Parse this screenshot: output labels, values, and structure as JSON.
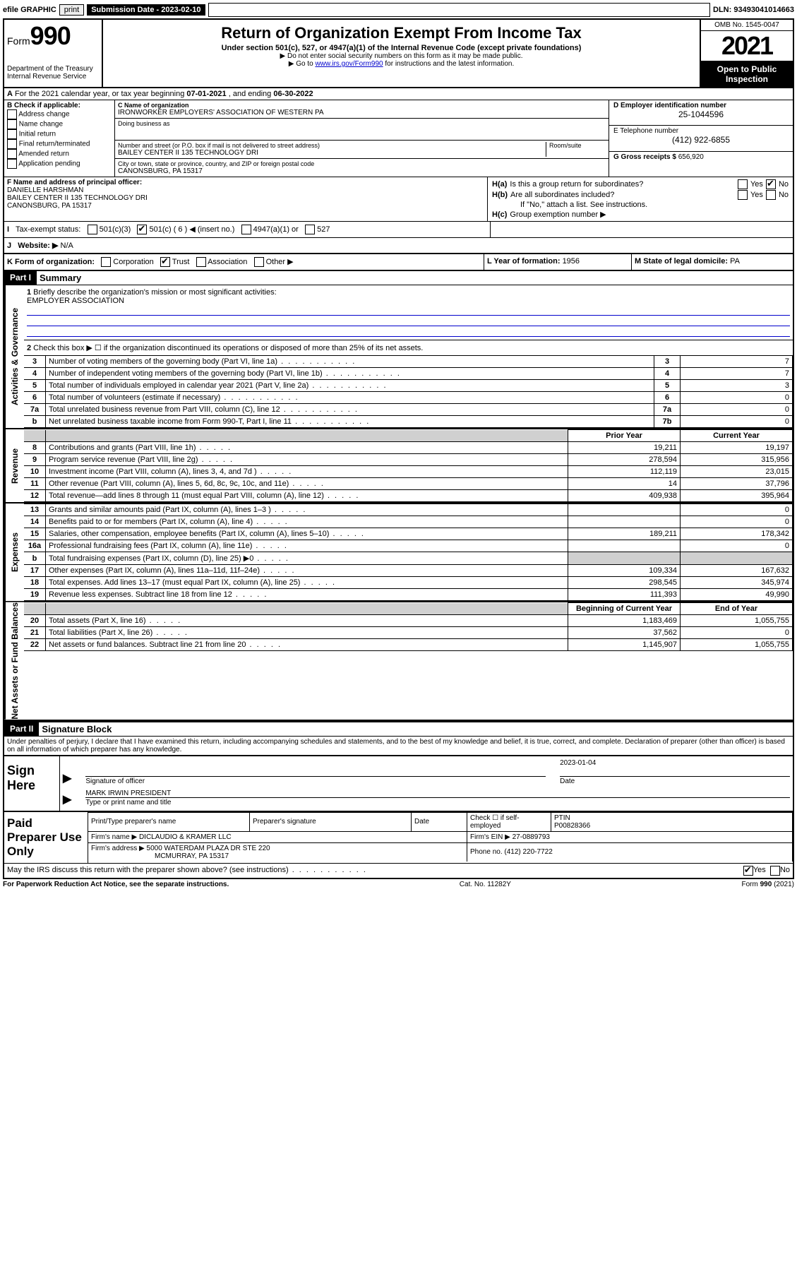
{
  "topbar": {
    "efile": "efile GRAPHIC",
    "print": "print",
    "submission_label": "Submission Date - 2023-02-10",
    "dln_label": "DLN: 93493041014663"
  },
  "header": {
    "form_prefix": "Form",
    "form_number": "990",
    "dept": "Department of the Treasury",
    "irs": "Internal Revenue Service",
    "title": "Return of Organization Exempt From Income Tax",
    "subtitle": "Under section 501(c), 527, or 4947(a)(1) of the Internal Revenue Code (except private foundations)",
    "warn1": "▶ Do not enter social security numbers on this form as it may be made public.",
    "warn2_pre": "▶ Go to ",
    "warn2_link": "www.irs.gov/Form990",
    "warn2_post": " for instructions and the latest information.",
    "omb": "OMB No. 1545-0047",
    "year": "2021",
    "open_public": "Open to Public Inspection"
  },
  "row_a": {
    "text_pre": "For the 2021 calendar year, or tax year beginning ",
    "begin": "07-01-2021",
    "mid": " , and ending ",
    "end": "06-30-2022"
  },
  "section_b": {
    "label": "B Check if applicable:",
    "opts": [
      "Address change",
      "Name change",
      "Initial return",
      "Final return/terminated",
      "Amended return",
      "Application pending"
    ]
  },
  "section_c": {
    "name_label": "C Name of organization",
    "name": "IRONWORKER EMPLOYERS' ASSOCIATION OF WESTERN PA",
    "dba_label": "Doing business as",
    "street_label": "Number and street (or P.O. box if mail is not delivered to street address)",
    "room_label": "Room/suite",
    "street": "BAILEY CENTER II 135 TECHNOLOGY DRI",
    "city_label": "City or town, state or province, country, and ZIP or foreign postal code",
    "city": "CANONSBURG, PA  15317"
  },
  "section_d": {
    "ein_label": "D Employer identification number",
    "ein": "25-1044596",
    "phone_label": "E Telephone number",
    "phone": "(412) 922-6855",
    "gross_label": "G Gross receipts $ ",
    "gross": "656,920"
  },
  "section_f": {
    "label": "F Name and address of principal officer:",
    "name": "DANIELLE HARSHMAN",
    "addr1": "BAILEY CENTER II 135 TECHNOLOGY DRI",
    "addr2": "CANONSBURG, PA  15317"
  },
  "section_h": {
    "ha": "Is this a group return for subordinates?",
    "hb": "Are all subordinates included?",
    "hb_note": "If \"No,\" attach a list. See instructions.",
    "hc": "Group exemption number ▶",
    "ha_label": "H(a)",
    "hb_label": "H(b)",
    "hc_label": "H(c)",
    "yes": "Yes",
    "no": "No",
    "ha_answer_no_checked": true
  },
  "row_i": {
    "label": "Tax-exempt status:",
    "opts": [
      "501(c)(3)",
      "501(c) ( 6 ) ◀ (insert no.)",
      "4947(a)(1) or",
      "527"
    ],
    "checked_index": 1
  },
  "row_j": {
    "label": "Website: ▶",
    "value": "N/A"
  },
  "row_k": {
    "label": "K Form of organization:",
    "opts": [
      "Corporation",
      "Trust",
      "Association",
      "Other ▶"
    ],
    "checked_index": 1,
    "year_label": "L Year of formation: ",
    "year": "1956",
    "state_label": "M State of legal domicile: ",
    "state": "PA"
  },
  "part1": {
    "header": "Part I",
    "title": "Summary",
    "mission_label": "Briefly describe the organization's mission or most significant activities:",
    "mission": "EMPLOYER ASSOCIATION",
    "line2": "Check this box ▶ ☐  if the organization discontinued its operations or disposed of more than 25% of its net assets.",
    "sections": [
      {
        "side": "Activities & Governance",
        "rows": [
          {
            "n": "3",
            "desc": "Number of voting members of the governing body (Part VI, line 1a)",
            "box": "3",
            "v": "7"
          },
          {
            "n": "4",
            "desc": "Number of independent voting members of the governing body (Part VI, line 1b)",
            "box": "4",
            "v": "7"
          },
          {
            "n": "5",
            "desc": "Total number of individuals employed in calendar year 2021 (Part V, line 2a)",
            "box": "5",
            "v": "3"
          },
          {
            "n": "6",
            "desc": "Total number of volunteers (estimate if necessary)",
            "box": "6",
            "v": "0"
          },
          {
            "n": "7a",
            "desc": "Total unrelated business revenue from Part VIII, column (C), line 12",
            "box": "7a",
            "v": "0"
          },
          {
            "n": "b",
            "desc": "Net unrelated business taxable income from Form 990-T, Part I, line 11",
            "box": "7b",
            "v": "0"
          }
        ]
      },
      {
        "side": "Revenue",
        "header_prior": "Prior Year",
        "header_current": "Current Year",
        "rows": [
          {
            "n": "8",
            "desc": "Contributions and grants (Part VIII, line 1h)",
            "p": "19,211",
            "c": "19,197"
          },
          {
            "n": "9",
            "desc": "Program service revenue (Part VIII, line 2g)",
            "p": "278,594",
            "c": "315,956"
          },
          {
            "n": "10",
            "desc": "Investment income (Part VIII, column (A), lines 3, 4, and 7d )",
            "p": "112,119",
            "c": "23,015"
          },
          {
            "n": "11",
            "desc": "Other revenue (Part VIII, column (A), lines 5, 6d, 8c, 9c, 10c, and 11e)",
            "p": "14",
            "c": "37,796"
          },
          {
            "n": "12",
            "desc": "Total revenue—add lines 8 through 11 (must equal Part VIII, column (A), line 12)",
            "p": "409,938",
            "c": "395,964"
          }
        ]
      },
      {
        "side": "Expenses",
        "rows": [
          {
            "n": "13",
            "desc": "Grants and similar amounts paid (Part IX, column (A), lines 1–3 )",
            "p": "",
            "c": "0"
          },
          {
            "n": "14",
            "desc": "Benefits paid to or for members (Part IX, column (A), line 4)",
            "p": "",
            "c": "0"
          },
          {
            "n": "15",
            "desc": "Salaries, other compensation, employee benefits (Part IX, column (A), lines 5–10)",
            "p": "189,211",
            "c": "178,342"
          },
          {
            "n": "16a",
            "desc": "Professional fundraising fees (Part IX, column (A), line 11e)",
            "p": "",
            "c": "0"
          },
          {
            "n": "b",
            "desc": "Total fundraising expenses (Part IX, column (D), line 25) ▶0",
            "p": "shade",
            "c": "shade"
          },
          {
            "n": "17",
            "desc": "Other expenses (Part IX, column (A), lines 11a–11d, 11f–24e)",
            "p": "109,334",
            "c": "167,632"
          },
          {
            "n": "18",
            "desc": "Total expenses. Add lines 13–17 (must equal Part IX, column (A), line 25)",
            "p": "298,545",
            "c": "345,974"
          },
          {
            "n": "19",
            "desc": "Revenue less expenses. Subtract line 18 from line 12",
            "p": "111,393",
            "c": "49,990"
          }
        ]
      },
      {
        "side": "Net Assets or Fund Balances",
        "header_prior": "Beginning of Current Year",
        "header_current": "End of Year",
        "rows": [
          {
            "n": "20",
            "desc": "Total assets (Part X, line 16)",
            "p": "1,183,469",
            "c": "1,055,755"
          },
          {
            "n": "21",
            "desc": "Total liabilities (Part X, line 26)",
            "p": "37,562",
            "c": "0"
          },
          {
            "n": "22",
            "desc": "Net assets or fund balances. Subtract line 21 from line 20",
            "p": "1,145,907",
            "c": "1,055,755"
          }
        ]
      }
    ]
  },
  "part2": {
    "header": "Part II",
    "title": "Signature Block",
    "declaration": "Under penalties of perjury, I declare that I have examined this return, including accompanying schedules and statements, and to the best of my knowledge and belief, it is true, correct, and complete. Declaration of preparer (other than officer) is based on all information of which preparer has any knowledge.",
    "sign_here": "Sign Here",
    "sig_officer": "Signature of officer",
    "sig_date": "Date",
    "sig_date_val": "2023-01-04",
    "officer_name": "MARK IRWIN  PRESIDENT",
    "type_name": "Type or print name and title",
    "paid_prep": "Paid Preparer Use Only",
    "pp_name_label": "Print/Type preparer's name",
    "pp_sig_label": "Preparer's signature",
    "pp_date_label": "Date",
    "pp_check": "Check ☐ if self-employed",
    "ptin_label": "PTIN",
    "ptin": "P00828366",
    "firm_name_label": "Firm's name      ▶",
    "firm_name": "DICLAUDIO & KRAMER LLC",
    "firm_ein_label": "Firm's EIN ▶",
    "firm_ein": "27-0889793",
    "firm_addr_label": "Firm's address ▶",
    "firm_addr1": "5000 WATERDAM PLAZA DR STE 220",
    "firm_addr2": "MCMURRAY, PA  15317",
    "firm_phone_label": "Phone no. ",
    "firm_phone": "(412) 220-7722",
    "may_discuss": "May the IRS discuss this return with the preparer shown above? (see instructions)",
    "may_yes_checked": true
  },
  "footer": {
    "left": "For Paperwork Reduction Act Notice, see the separate instructions.",
    "mid": "Cat. No. 11282Y",
    "right": "Form 990 (2021)"
  }
}
